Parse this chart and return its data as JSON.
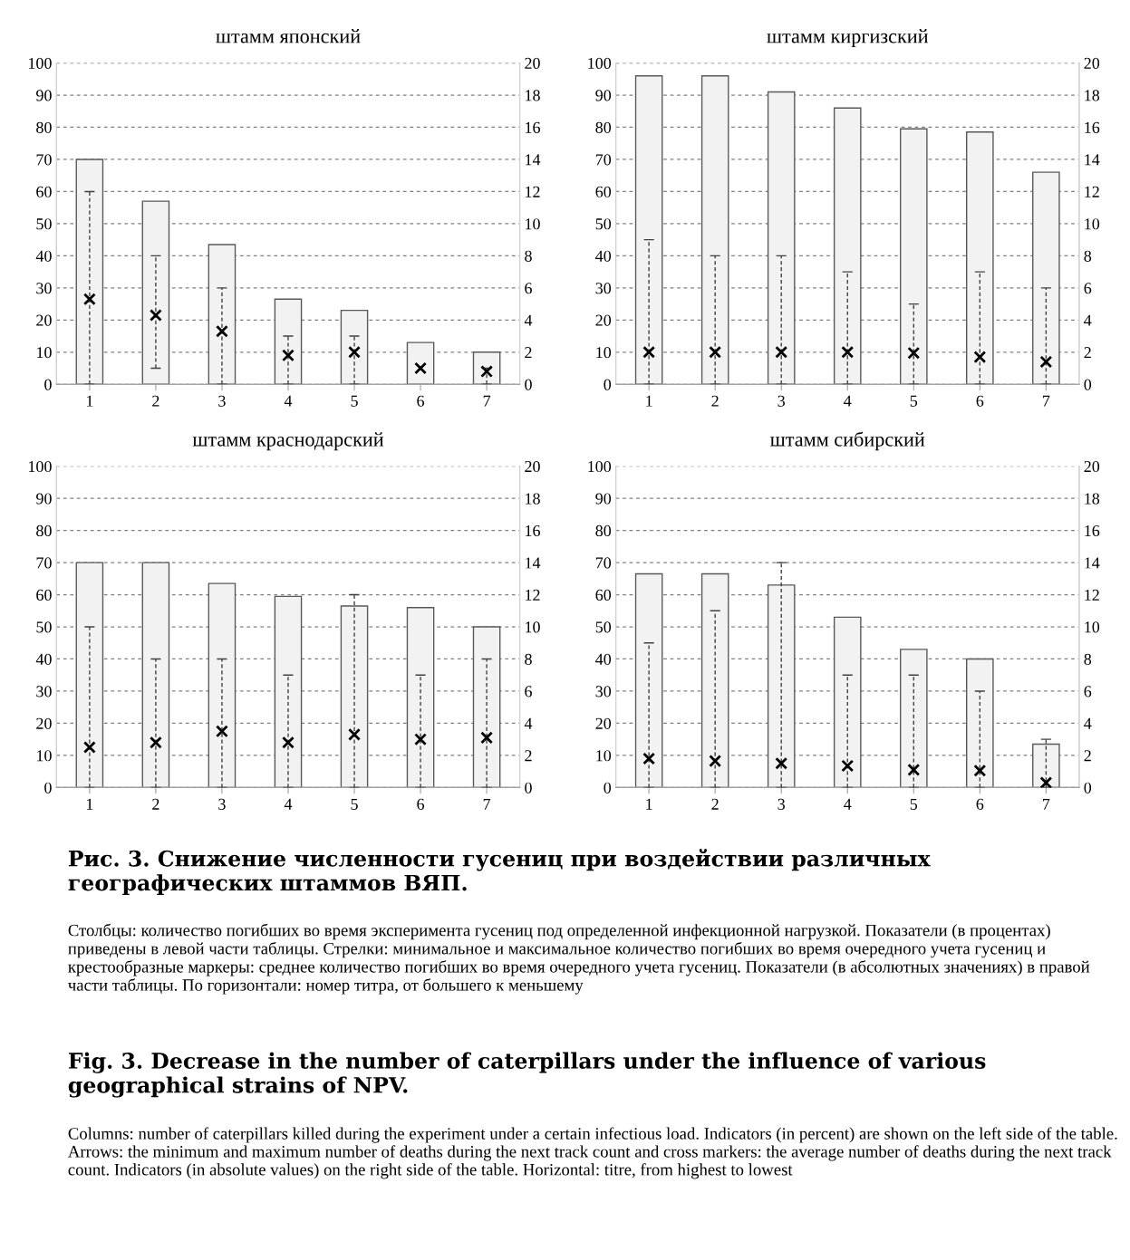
{
  "chart_data": [
    {
      "type": "bar",
      "title": "штамм японский",
      "categories": [
        "1",
        "2",
        "3",
        "4",
        "5",
        "6",
        "7"
      ],
      "ylim": [
        0,
        100
      ],
      "yticks": [
        0,
        10,
        20,
        30,
        40,
        50,
        60,
        70,
        80,
        90,
        100
      ],
      "y2lim": [
        0,
        20
      ],
      "y2ticks": [
        0,
        2,
        4,
        6,
        8,
        10,
        12,
        14,
        16,
        18,
        20
      ],
      "grid": "y",
      "series": [
        {
          "color": "#f2f2f2",
          "values": [
            70,
            57,
            43.5,
            26.5,
            23,
            13,
            10
          ]
        },
        {
          "type": "scatter",
          "axis": "y2",
          "marker": "cross",
          "color": "#000000",
          "values": [
            5.3,
            4.3,
            3.3,
            1.8,
            2.0,
            1.0,
            0.8
          ],
          "errors": [
            [
              0,
              12
            ],
            [
              1,
              8
            ],
            [
              0,
              6
            ],
            [
              0,
              3
            ],
            [
              0,
              3
            ],
            null,
            [
              0,
              1
            ]
          ]
        }
      ]
    },
    {
      "type": "bar",
      "title": "штамм киргизский",
      "categories": [
        "1",
        "2",
        "3",
        "4",
        "5",
        "6",
        "7"
      ],
      "ylim": [
        0,
        100
      ],
      "yticks": [
        0,
        10,
        20,
        30,
        40,
        50,
        60,
        70,
        80,
        90,
        100
      ],
      "y2lim": [
        0,
        20
      ],
      "y2ticks": [
        0,
        2,
        4,
        6,
        8,
        10,
        12,
        14,
        16,
        18,
        20
      ],
      "grid": "y",
      "series": [
        {
          "color": "#f2f2f2",
          "values": [
            96,
            96,
            91,
            86,
            79.5,
            78.5,
            66
          ]
        },
        {
          "type": "scatter",
          "axis": "y2",
          "marker": "cross",
          "color": "#000000",
          "values": [
            2.0,
            2.0,
            2.0,
            2.0,
            1.95,
            1.7,
            1.4
          ],
          "errors": [
            [
              0,
              9
            ],
            [
              0,
              8
            ],
            [
              0,
              8
            ],
            [
              0,
              7
            ],
            [
              0,
              5
            ],
            [
              0,
              7
            ],
            [
              0,
              6
            ]
          ]
        }
      ]
    },
    {
      "type": "bar",
      "title": "штамм краснодарский",
      "categories": [
        "1",
        "2",
        "3",
        "4",
        "5",
        "6",
        "7"
      ],
      "ylim": [
        0,
        100
      ],
      "yticks": [
        0,
        10,
        20,
        30,
        40,
        50,
        60,
        70,
        80,
        90,
        100
      ],
      "y2lim": [
        0,
        20
      ],
      "y2ticks": [
        0,
        2,
        4,
        6,
        8,
        10,
        12,
        14,
        16,
        18,
        20
      ],
      "grid": "y",
      "series": [
        {
          "color": "#f2f2f2",
          "values": [
            70,
            70,
            63.5,
            59.5,
            56.5,
            56,
            50
          ]
        },
        {
          "type": "scatter",
          "axis": "y2",
          "marker": "cross",
          "color": "#000000",
          "values": [
            2.5,
            2.8,
            3.5,
            2.8,
            3.3,
            3.0,
            3.1
          ],
          "errors": [
            [
              0,
              10
            ],
            [
              0,
              8
            ],
            [
              0,
              8
            ],
            [
              0,
              7
            ],
            [
              0,
              12
            ],
            [
              0,
              7
            ],
            [
              0,
              8
            ]
          ]
        }
      ]
    },
    {
      "type": "bar",
      "title": "штамм сибирский",
      "categories": [
        "1",
        "2",
        "3",
        "4",
        "5",
        "6",
        "7"
      ],
      "ylim": [
        0,
        100
      ],
      "yticks": [
        0,
        10,
        20,
        30,
        40,
        50,
        60,
        70,
        80,
        90,
        100
      ],
      "y2lim": [
        0,
        20
      ],
      "y2ticks": [
        0,
        2,
        4,
        6,
        8,
        10,
        12,
        14,
        16,
        18,
        20
      ],
      "grid": "y",
      "series": [
        {
          "color": "#f2f2f2",
          "values": [
            66.5,
            66.5,
            63,
            53,
            43,
            40,
            13.5
          ]
        },
        {
          "type": "scatter",
          "axis": "y2",
          "marker": "cross",
          "color": "#000000",
          "values": [
            1.8,
            1.65,
            1.5,
            1.35,
            1.1,
            1.05,
            0.3
          ],
          "errors": [
            [
              0,
              9
            ],
            [
              0,
              11
            ],
            [
              0,
              14
            ],
            [
              0,
              7
            ],
            [
              0,
              7
            ],
            [
              0,
              6
            ],
            [
              0,
              3
            ]
          ]
        }
      ]
    },
    {
      "type": "other",
      "annotations": [
        "Рис. 3. Снижение численности гусениц при воздействии различных географических штаммов ВЯП.",
        "Столбцы: количество погибших во время эксперимента гусениц под определенной инфекционной нагрузкой. Показатели (в процентах) приведены в левой части таблицы. Стрелки: минимальное и максимальное количество погибших во время очередного учета гусениц и крестообразные маркеры: среднее количество погибших во время очередного учета гусениц. Показатели (в абсолютных значениях) в правой части таблицы. По горизонтали: номер титра, от большего к меньшему",
        "Fig. 3. Decrease in the number of caterpillars under the influence of various geographical strains of NPV.",
        "Columns: number of caterpillars killed during the experiment under a certain infectious load. Indicators (in percent) are shown on the left side of the table. Arrows: the minimum and maximum number of deaths during the next track count and cross markers: the average number of deaths during the next track count. Indicators (in absolute values) on the right side of the table. Horizontal: titre, from highest to lowest"
      ]
    }
  ]
}
